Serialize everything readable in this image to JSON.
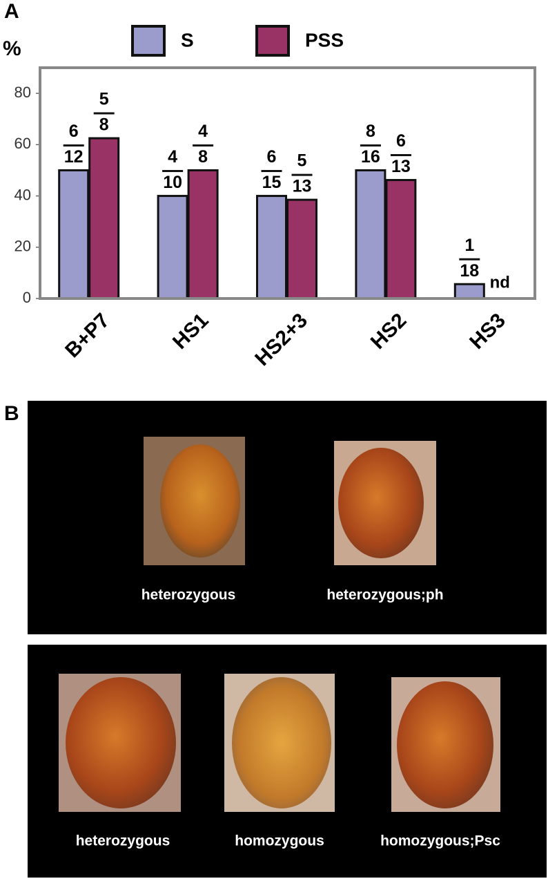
{
  "chart_data": {
    "type": "bar",
    "panel_label": "A",
    "ylabel": "%",
    "categories": [
      "B+P7",
      "HS1",
      "HS2+3",
      "HS2",
      "HS3"
    ],
    "series": [
      {
        "name": "S",
        "color": "#9c9ccc",
        "values": [
          50,
          40,
          40,
          50,
          5.6
        ],
        "value_labels": [
          [
            "6",
            "12"
          ],
          [
            "4",
            "10"
          ],
          [
            "6",
            "15"
          ],
          [
            "8",
            "16"
          ],
          [
            "1",
            "18"
          ]
        ]
      },
      {
        "name": "PSS",
        "color": "#993366",
        "values": [
          62.5,
          50,
          38.5,
          46.2,
          null
        ],
        "value_labels": [
          [
            "5",
            "8"
          ],
          [
            "4",
            "8"
          ],
          [
            "5",
            "13"
          ],
          [
            "6",
            "13"
          ],
          "nd"
        ]
      }
    ],
    "ylim": [
      0,
      90
    ],
    "yticks": [
      0,
      20,
      40,
      60,
      80
    ]
  },
  "panel_b": {
    "label": "B",
    "rows": [
      {
        "captions": [
          "heterozygous",
          "heterozygous;ph"
        ]
      },
      {
        "captions": [
          "heterozygous",
          "homozygous",
          "homozygous;Psc"
        ]
      }
    ]
  }
}
